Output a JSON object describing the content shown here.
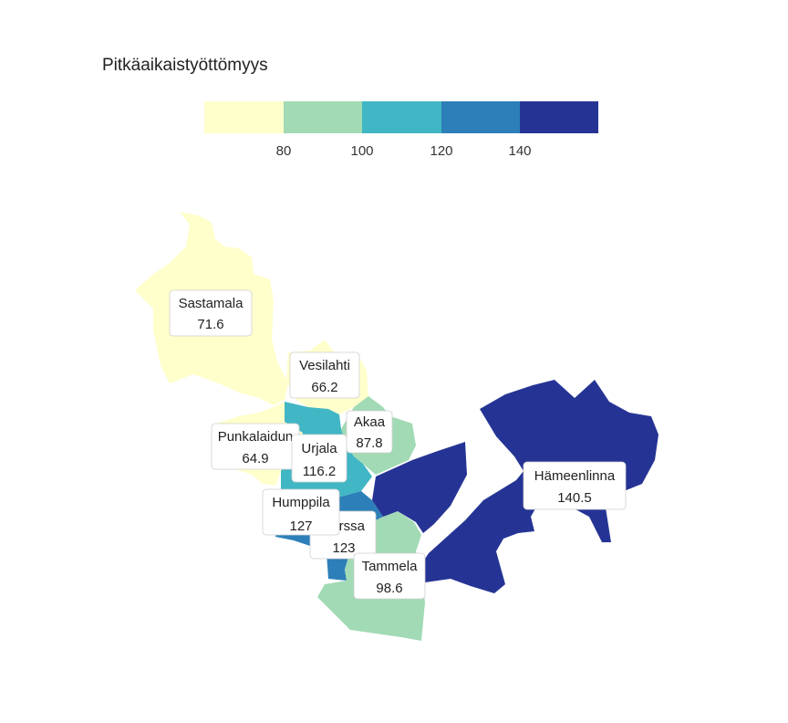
{
  "chart_data": {
    "type": "choropleth",
    "title": "Pitkäaikaistyöttömyys",
    "legend": {
      "ticks": [
        "80",
        "100",
        "120",
        "140"
      ],
      "colors": [
        "#ffffcc",
        "#a1dab4",
        "#41b6c4",
        "#2c7fb8",
        "#253494"
      ]
    },
    "regions": [
      {
        "name": "Sastamala",
        "value": "71.6"
      },
      {
        "name": "Vesilahti",
        "value": "66.2"
      },
      {
        "name": "Punkalaidun",
        "value": "64.9"
      },
      {
        "name": "Akaa",
        "value": "87.8"
      },
      {
        "name": "Urjala",
        "value": "116.2"
      },
      {
        "name": "Humppila",
        "value": "127"
      },
      {
        "name": "Forssa",
        "value": "123"
      },
      {
        "name": "Tammela",
        "value": "98.6"
      },
      {
        "name": "Hämeenlinna",
        "value": "140.5"
      }
    ]
  }
}
